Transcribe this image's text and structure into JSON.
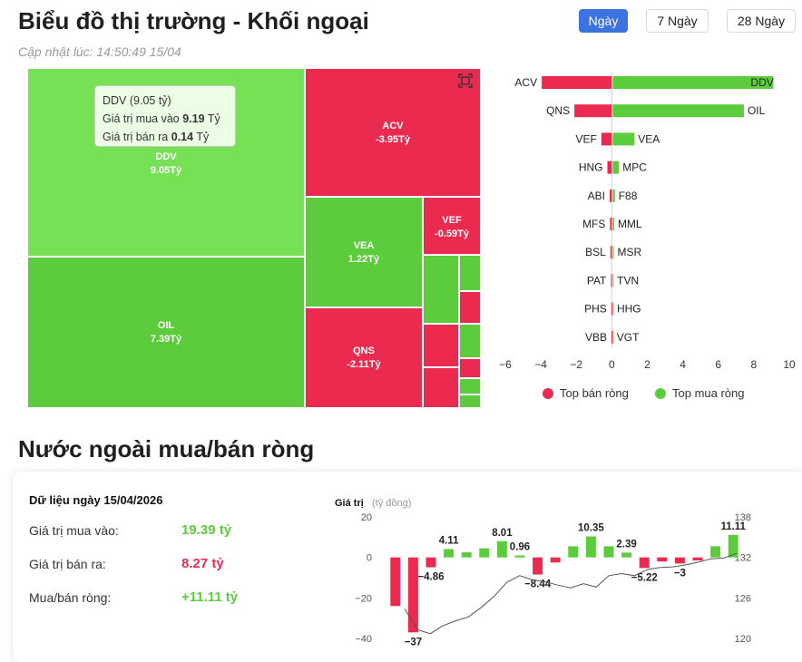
{
  "header": {
    "title": "Biểu đồ thị trường - Khối ngoại",
    "updated": "Cập nhật lúc: 14:50:49 15/04",
    "tabs": [
      {
        "label": "Ngày",
        "active": true
      },
      {
        "label": "7 Ngày",
        "active": false
      },
      {
        "label": "28 Ngày",
        "active": false
      }
    ]
  },
  "colors": {
    "buy": "#5ccc3c",
    "buy_light": "#77e155",
    "sell": "#ea2a4e",
    "tab_active": "#3c73e0"
  },
  "treemap": {
    "tiles": [
      {
        "code": "DDV",
        "value": "9.05Tỷ",
        "color": "buy_light"
      },
      {
        "code": "OIL",
        "value": "7.39Tỷ",
        "color": "buy"
      },
      {
        "code": "ACV",
        "value": "-3.95Tỷ",
        "color": "sell"
      },
      {
        "code": "VEA",
        "value": "1.22Tỷ",
        "color": "buy"
      },
      {
        "code": "QNS",
        "value": "-2.11Tỷ",
        "color": "sell"
      },
      {
        "code": "VEF",
        "value": "-0.59Tỷ",
        "color": "sell"
      }
    ],
    "tooltip": {
      "title": "DDV (9.05 tỷ)",
      "buy_label": "Giá trị mua vào",
      "buy_value": "9.19",
      "buy_unit": "Tỷ",
      "sell_label": "Giá trị bán ra",
      "sell_value": "0.14",
      "sell_unit": "Tỷ"
    },
    "fullscreen_icon": "fullscreen-icon"
  },
  "chart_data": [
    {
      "type": "bar",
      "orientation": "horizontal-diverging",
      "sell_labels": [
        "ACV",
        "QNS",
        "VEF",
        "HNG",
        "ABI",
        "MFS",
        "BSL",
        "PAT",
        "PHS",
        "VBB"
      ],
      "sell_values": [
        -3.95,
        -2.11,
        -0.59,
        -0.25,
        -0.12,
        -0.1,
        -0.08,
        -0.05,
        -0.03,
        -0.02
      ],
      "buy_labels": [
        "DDV",
        "OIL",
        "VEA",
        "MPC",
        "F88",
        "MML",
        "MSR",
        "TVN",
        "HHG",
        "VGT"
      ],
      "buy_values": [
        9.05,
        7.39,
        1.22,
        0.35,
        0.12,
        0.08,
        0.06,
        0.04,
        0.03,
        0.02
      ],
      "xlim": [
        -6,
        10
      ],
      "xticks": [
        "−6",
        "−4",
        "−2",
        "0",
        "2",
        "4",
        "6",
        "8",
        "10"
      ],
      "legend": [
        {
          "label": "Top bán ròng",
          "color": "#ea2a4e"
        },
        {
          "label": "Top mua ròng",
          "color": "#5ccc3c"
        }
      ],
      "legend_position": "bottom"
    },
    {
      "type": "bar",
      "ylabel": "Giá trị",
      "ylabel_unit": "(tỷ đồng)",
      "ylim": [
        -40,
        20
      ],
      "yticks_left": [
        "20",
        "0",
        "−20",
        "−40"
      ],
      "yticks_right": [
        "138",
        "132",
        "126",
        "120"
      ],
      "y2lim": [
        120,
        138
      ],
      "values": [
        -24,
        -37,
        -4.86,
        4.11,
        2.5,
        4.5,
        8.01,
        0.96,
        -8.44,
        -2.5,
        5.5,
        10.35,
        5.5,
        2.39,
        -5.22,
        -2,
        -3,
        -1.5,
        5.5,
        11.11
      ],
      "data_labels": [
        "",
        "−37",
        "−4.86",
        "4.11",
        "",
        "",
        "8.01",
        "0.96",
        "−8.44",
        "",
        "",
        "10.35",
        "",
        "2.39",
        "−5.22",
        "",
        "−3",
        "",
        "",
        "11.11"
      ],
      "line_values": [
        124.4,
        121.3,
        120.7,
        121.9,
        122.6,
        123.2,
        124.6,
        126.2,
        128.3,
        129.3,
        128.7,
        128.4,
        127.9,
        127.5,
        128.1,
        127.6,
        129.3,
        129.6,
        129.3,
        130.2,
        130.5,
        130.6,
        130.9,
        131.3,
        131.8,
        131.9,
        132.6
      ]
    }
  ],
  "summary": {
    "heading": "Dữ liệu ngày 15/04/2026",
    "rows": [
      {
        "label": "Giá trị mua vào:",
        "value": "19.39 tỷ",
        "color": "#5ccc3c"
      },
      {
        "label": "Giá trị bán ra:",
        "value": "8.27 tỷ",
        "color": "#ea2a4e"
      },
      {
        "label": "Mua/bán ròng:",
        "value": "+11.11 tỷ",
        "color": "#5ccc3c"
      }
    ]
  },
  "section2": {
    "title": "Nước ngoài mua/bán ròng"
  }
}
